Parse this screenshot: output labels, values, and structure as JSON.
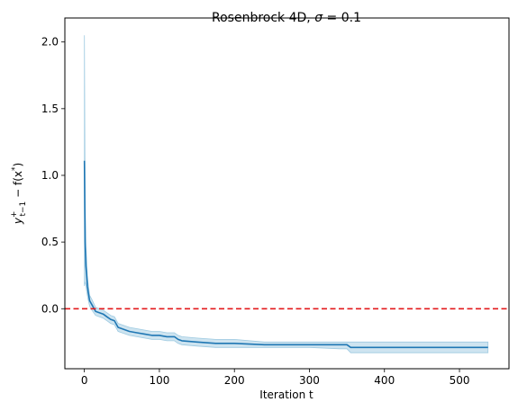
{
  "chart_data": {
    "type": "line",
    "title_prefix": "Rosenbrock 4D, ",
    "title_sigma": "σ",
    "title_suffix": " = 0.1",
    "xlabel": "Iteration t",
    "ylabel_main": "y",
    "ylabel_sub": "t−1",
    "ylabel_sup": "+",
    "ylabel_rest": " − f(x",
    "ylabel_star": "*",
    "ylabel_close": ")",
    "xlim": [
      -26,
      566
    ],
    "ylim": [
      -0.45,
      2.18
    ],
    "xticks": [
      0,
      100,
      200,
      300,
      400,
      500
    ],
    "yticks": [
      0.0,
      0.5,
      1.0,
      1.5,
      2.0
    ],
    "xtick_labels": [
      "0",
      "100",
      "200",
      "300",
      "400",
      "500"
    ],
    "ytick_labels": [
      "0.0",
      "0.5",
      "1.0",
      "1.5",
      "2.0"
    ],
    "reference_line": {
      "y": 0.0,
      "color": "#e31a1c",
      "style": "dashed"
    },
    "series": [
      {
        "color": "#1f77b4",
        "band_color": "#9ecae1",
        "x": [
          0,
          1,
          2,
          3,
          4,
          5,
          7,
          10,
          15,
          20,
          25,
          30,
          35,
          40,
          45,
          50,
          60,
          70,
          80,
          90,
          100,
          110,
          120,
          125,
          130,
          150,
          175,
          200,
          240,
          260,
          300,
          340,
          350,
          355,
          400,
          450,
          500,
          538
        ],
        "y": [
          1.11,
          0.5,
          0.32,
          0.25,
          0.17,
          0.13,
          0.06,
          0.03,
          -0.02,
          -0.03,
          -0.04,
          -0.06,
          -0.08,
          -0.09,
          -0.14,
          -0.15,
          -0.17,
          -0.18,
          -0.19,
          -0.2,
          -0.2,
          -0.21,
          -0.21,
          -0.23,
          -0.24,
          -0.25,
          -0.26,
          -0.26,
          -0.27,
          -0.27,
          -0.27,
          -0.27,
          -0.27,
          -0.29,
          -0.29,
          -0.29,
          -0.29,
          -0.29
        ],
        "lower": [
          0.17,
          0.2,
          0.18,
          0.13,
          0.1,
          0.07,
          0.02,
          -0.01,
          -0.05,
          -0.06,
          -0.07,
          -0.09,
          -0.11,
          -0.12,
          -0.17,
          -0.18,
          -0.2,
          -0.21,
          -0.22,
          -0.23,
          -0.23,
          -0.24,
          -0.24,
          -0.26,
          -0.27,
          -0.28,
          -0.29,
          -0.29,
          -0.29,
          -0.29,
          -0.29,
          -0.3,
          -0.3,
          -0.33,
          -0.33,
          -0.33,
          -0.33,
          -0.33
        ],
        "upper": [
          2.05,
          0.8,
          0.47,
          0.37,
          0.25,
          0.19,
          0.1,
          0.07,
          0.01,
          0.0,
          -0.01,
          -0.03,
          -0.05,
          -0.06,
          -0.11,
          -0.12,
          -0.14,
          -0.15,
          -0.16,
          -0.17,
          -0.17,
          -0.18,
          -0.18,
          -0.2,
          -0.21,
          -0.22,
          -0.23,
          -0.23,
          -0.25,
          -0.25,
          -0.25,
          -0.25,
          -0.25,
          -0.25,
          -0.25,
          -0.25,
          -0.25,
          -0.25
        ]
      }
    ]
  }
}
